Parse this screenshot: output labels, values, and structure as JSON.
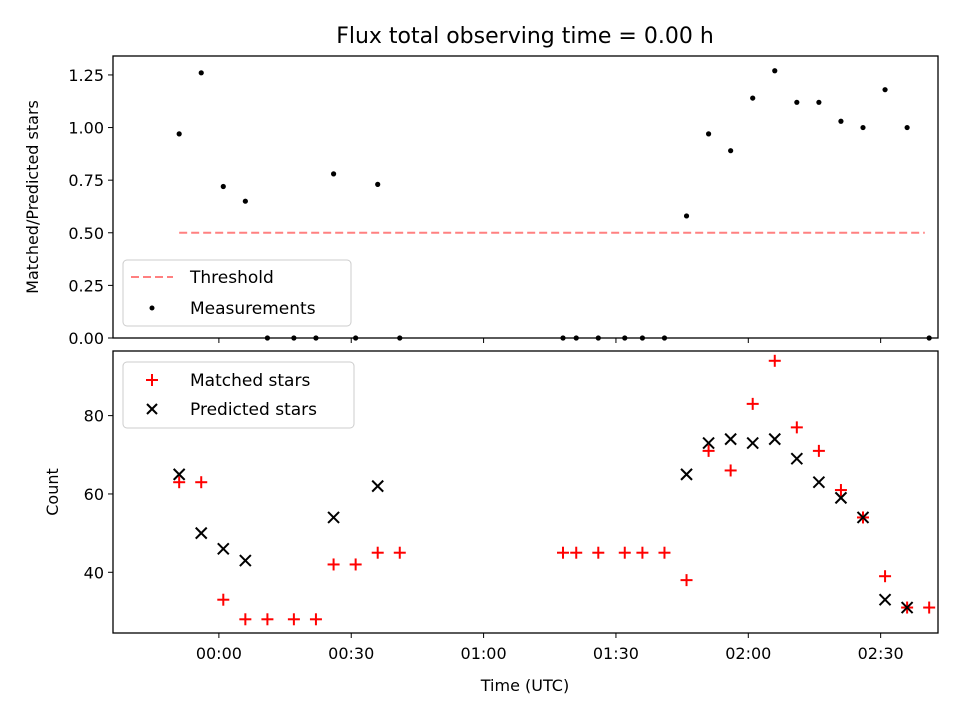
{
  "chart_data": [
    {
      "type": "scatter",
      "title": "Flux total observing time = 0.00 h",
      "xlabel": "",
      "ylabel": "Matched/Predicted stars",
      "xlim": [
        "23:36",
        "02:43"
      ],
      "ylim": [
        0,
        1.34
      ],
      "yticks": [
        0.0,
        0.25,
        0.5,
        0.75,
        1.0,
        1.25
      ],
      "ytick_labels": [
        "0.00",
        "0.25",
        "0.50",
        "0.75",
        "1.00",
        "1.25"
      ],
      "xticks": [
        "00:00",
        "00:30",
        "01:00",
        "01:30",
        "02:00",
        "02:30"
      ],
      "show_xtick_labels": false,
      "legend": {
        "placement": "lower left",
        "entries": [
          "Threshold",
          "Measurements"
        ]
      },
      "series": [
        {
          "name": "Threshold",
          "kind": "dashed-line",
          "color": "#ff8080",
          "x": [
            "23:51",
            "02:40"
          ],
          "y": [
            0.5,
            0.5
          ]
        },
        {
          "name": "Measurements",
          "kind": "dot",
          "color": "#000000",
          "x": [
            "23:51",
            "23:56",
            "00:01",
            "00:06",
            "00:11",
            "00:17",
            "00:22",
            "00:26",
            "00:31",
            "00:36",
            "00:41",
            "01:18",
            "01:21",
            "01:26",
            "01:32",
            "01:36",
            "01:41",
            "01:46",
            "01:51",
            "01:56",
            "02:01",
            "02:06",
            "02:11",
            "02:16",
            "02:21",
            "02:26",
            "02:31",
            "02:36",
            "02:41"
          ],
          "y": [
            0.97,
            1.26,
            0.72,
            0.65,
            0.0,
            0.0,
            0.0,
            0.78,
            0.0,
            0.73,
            0.0,
            0.0,
            0.0,
            0.0,
            0.0,
            0.0,
            0.0,
            0.58,
            0.97,
            0.89,
            1.14,
            1.27,
            1.12,
            1.12,
            1.03,
            1.0,
            1.18,
            1.0,
            0.0
          ]
        }
      ]
    },
    {
      "type": "scatter",
      "title": "",
      "xlabel": "Time (UTC)",
      "ylabel": "Count",
      "xlim": [
        "23:36",
        "02:43"
      ],
      "ylim": [
        24.5,
        96.5
      ],
      "yticks": [
        40,
        60,
        80
      ],
      "ytick_labels": [
        "40",
        "60",
        "80"
      ],
      "xticks": [
        "00:00",
        "00:30",
        "01:00",
        "01:30",
        "02:00",
        "02:30"
      ],
      "xtick_labels": [
        "00:00",
        "00:30",
        "01:00",
        "01:30",
        "02:00",
        "02:30"
      ],
      "legend": {
        "placement": "upper left",
        "entries": [
          "Matched stars",
          "Predicted stars"
        ]
      },
      "series": [
        {
          "name": "Matched stars",
          "kind": "plus",
          "color": "#ff0000",
          "x": [
            "23:51",
            "23:56",
            "00:01",
            "00:06",
            "00:11",
            "00:17",
            "00:22",
            "00:26",
            "00:31",
            "00:36",
            "00:41",
            "01:18",
            "01:21",
            "01:26",
            "01:32",
            "01:36",
            "01:41",
            "01:46",
            "01:51",
            "01:56",
            "02:01",
            "02:06",
            "02:11",
            "02:16",
            "02:21",
            "02:26",
            "02:31",
            "02:36",
            "02:41"
          ],
          "y": [
            63,
            63,
            33,
            28,
            28,
            28,
            28,
            42,
            42,
            45,
            45,
            45,
            45,
            45,
            45,
            45,
            45,
            38,
            71,
            66,
            83,
            94,
            77,
            71,
            61,
            54,
            39,
            31,
            31
          ]
        },
        {
          "name": "Predicted stars",
          "kind": "cross",
          "color": "#000000",
          "x": [
            "23:51",
            "23:56",
            "00:01",
            "00:06",
            "00:26",
            "00:36",
            "01:46",
            "01:51",
            "01:56",
            "02:01",
            "02:06",
            "02:11",
            "02:16",
            "02:21",
            "02:26",
            "02:31",
            "02:36"
          ],
          "y": [
            65,
            50,
            46,
            43,
            54,
            62,
            65,
            73,
            74,
            73,
            74,
            69,
            63,
            59,
            54,
            33,
            31
          ]
        }
      ]
    }
  ]
}
